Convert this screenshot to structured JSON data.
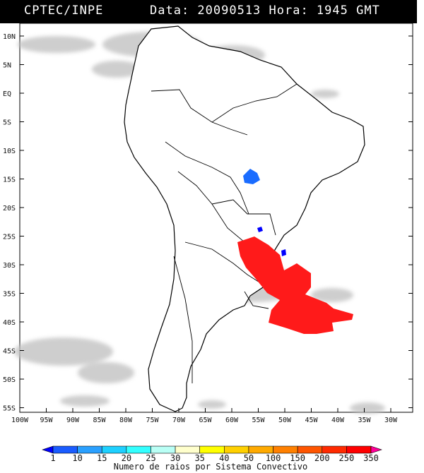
{
  "header": {
    "source": "CPTEC/INPE",
    "datetime": "Data: 20090513 Hora: 1945 GMT"
  },
  "map": {
    "lat_labels": [
      "10N",
      "5N",
      "EQ",
      "5S",
      "10S",
      "15S",
      "20S",
      "25S",
      "30S",
      "35S",
      "40S",
      "45S",
      "50S",
      "55S"
    ],
    "lon_labels": [
      "100W",
      "95W",
      "90W",
      "85W",
      "80W",
      "75W",
      "70W",
      "65W",
      "60W",
      "55W",
      "50W",
      "45W",
      "40W",
      "35W",
      "30W"
    ],
    "lat_range_deg": [
      -56,
      12
    ],
    "lon_range_deg": [
      -100,
      -27
    ],
    "layers": {
      "cloud_cover": "gray shading",
      "lightning_clusters": [
        {
          "color_class": "350",
          "region": "Southern Brazil, Uruguay, NE Argentina and adjacent Atlantic",
          "color": "#ff1a1a"
        },
        {
          "color_class": "10",
          "region": "Central Brazil (~15S 57W)",
          "color": "#1a6cff"
        },
        {
          "color_class": "1",
          "region": "Paraguay-Brazil border (~25S 55W)",
          "color": "#0000ff"
        },
        {
          "color_class": "1",
          "region": "Southern Brazil coast (~28S 50W)",
          "color": "#0000ff"
        }
      ]
    }
  },
  "colorbar": {
    "labels": [
      "1",
      "10",
      "15",
      "20",
      "25",
      "30",
      "35",
      "40",
      "50",
      "100",
      "150",
      "200",
      "250",
      "350"
    ],
    "colors": [
      "#0000ff",
      "#1a5cff",
      "#2aa0ff",
      "#1ed0ff",
      "#33ffff",
      "#b9fff5",
      "#ffffcc",
      "#ffff00",
      "#ffd000",
      "#ffaa00",
      "#ff8000",
      "#ff5500",
      "#ff2a00",
      "#ff0000",
      "#ff0099"
    ],
    "title": "Numero de raios por Sistema Convectivo"
  }
}
